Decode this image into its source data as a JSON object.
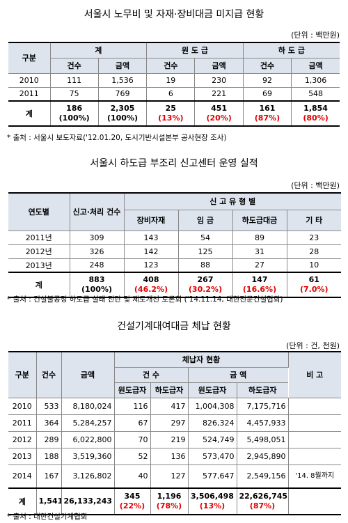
{
  "tables": [
    {
      "title": "서울시 노무비 및 자재·장비대금 미지급 현황",
      "unit": "(단위 : 백만원)",
      "header_top": [
        "구분",
        "계",
        "원 도 급",
        "하 도 급"
      ],
      "header_sub": [
        "건수",
        "금액",
        "건수",
        "금액",
        "건수",
        "금액"
      ],
      "rows": [
        [
          "2010",
          "111",
          "1,536",
          "19",
          "230",
          "92",
          "1,306"
        ],
        [
          "2011",
          "75",
          "769",
          "6",
          "221",
          "69",
          "548"
        ]
      ],
      "total": {
        "label": "계",
        "cells": [
          {
            "main": "186",
            "pct": "(100%)"
          },
          {
            "main": "2,305",
            "pct": "(100%)"
          },
          {
            "main": "25",
            "pct": "(13%)",
            "red": true
          },
          {
            "main": "451",
            "pct": "(20%)",
            "red": true
          },
          {
            "main": "161",
            "pct": "(87%)",
            "red": true
          },
          {
            "main": "1,854",
            "pct": "(80%)",
            "red": true
          }
        ]
      },
      "source": "* 출처 : 서울시 보도자료('12.01.20, 도시기반시설본부 공사현장 조사)"
    },
    {
      "title": "서울시 하도급 부조리 신고센터 운영 실적",
      "unit": "(단위 : 백만원)",
      "header_top": [
        "연도별",
        "신고·처리 건수",
        "신 고 유 형 별"
      ],
      "header_sub": [
        "장비자재",
        "임 금",
        "하도급대금",
        "기 타"
      ],
      "rows": [
        [
          "2011년",
          "309",
          "143",
          "54",
          "89",
          "23"
        ],
        [
          "2012년",
          "326",
          "142",
          "125",
          "31",
          "28"
        ],
        [
          "2013년",
          "248",
          "123",
          "88",
          "27",
          "10"
        ]
      ],
      "total": {
        "label": "계",
        "cells": [
          {
            "main": "883",
            "pct": "(100%)"
          },
          {
            "main": "408",
            "pct": "(46.2%)",
            "red": true
          },
          {
            "main": "267",
            "pct": "(30.2%)",
            "red": true
          },
          {
            "main": "147",
            "pct": "(16.6%)",
            "red": true
          },
          {
            "main": "61",
            "pct": "(7.0%)",
            "red": true
          }
        ]
      },
      "source": "* 출처 : 건설불공정 하도급 실태 진단 및 제도개선 토론회 ('14.11.14, 대한전문건설협회)"
    },
    {
      "title": "건설기계대여대금 체납 현황",
      "unit": "(단위 : 건, 천원)",
      "header_top": [
        "구분",
        "건수",
        "금액",
        "체납자 현황",
        "비 고"
      ],
      "header_mid": [
        "건 수",
        "금 액"
      ],
      "header_sub": [
        "원도급자",
        "하도급자",
        "원도급자",
        "하도급자"
      ],
      "rows": [
        [
          "2010",
          "533",
          "8,180,024",
          "116",
          "417",
          "1,004,308",
          "7,175,716"
        ],
        [
          "2011",
          "364",
          "5,284,257",
          "67",
          "297",
          "826,324",
          "4,457,933"
        ],
        [
          "2012",
          "289",
          "6,022,800",
          "70",
          "219",
          "524,749",
          "5,498,051"
        ],
        [
          "2013",
          "188",
          "3,519,360",
          "52",
          "136",
          "573,470",
          "2,945,890"
        ],
        [
          "2014",
          "167",
          "3,126,802",
          "40",
          "127",
          "577,647",
          "2,549,156",
          "'14. 8월까지"
        ]
      ],
      "total": {
        "label": "계",
        "cells": [
          {
            "main": "1,541"
          },
          {
            "main": "26,133,243"
          },
          {
            "main": "345",
            "pct": "(22%)",
            "red": true
          },
          {
            "main": "1,196",
            "pct": "(78%)",
            "red": true
          },
          {
            "main": "3,506,498",
            "pct": "(13%)",
            "red": true
          },
          {
            "main": "22,626,745",
            "pct": "(87%)",
            "red": true
          }
        ]
      },
      "source": "* 출처 : 대한건설기계협회"
    }
  ]
}
